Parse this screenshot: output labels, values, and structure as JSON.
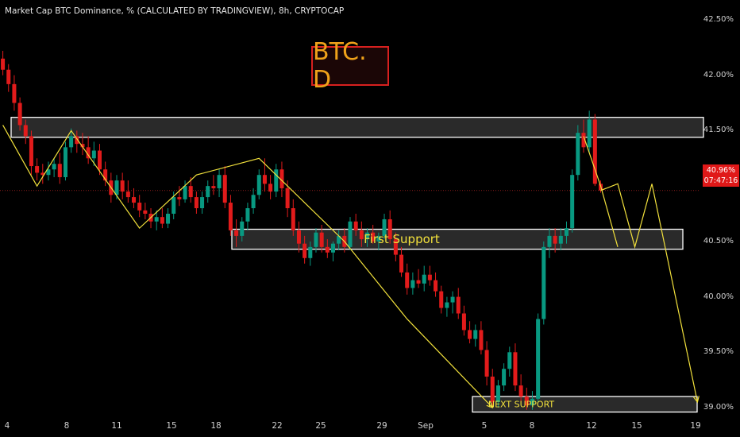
{
  "header": {
    "symbol_line": "Market Cap BTC Dominance, % (CALCULATED BY TRADINGVIEW), 8h, CRYPTOCAP",
    "badge": "BTC. D"
  },
  "price_tag": {
    "value": "40.96%",
    "countdown": "07:47:16"
  },
  "colors": {
    "up": "#089981",
    "down": "#e21b1b",
    "annotation": "#f2e13c",
    "zone_border": "#ffffff",
    "badge_border": "#d8201f",
    "badge_text": "#f0a21a"
  },
  "chart_data": {
    "type": "candlestick",
    "title": "BTC. D",
    "ylim": [
      38.95,
      42.55
    ],
    "y_ticks": [
      "42.50%",
      "42.00%",
      "41.50%",
      "40.50%",
      "40.00%",
      "39.50%",
      "39.00%"
    ],
    "x_ticks": [
      "4",
      "8",
      "11",
      "15",
      "18",
      "22",
      "25",
      "29",
      "Sep",
      "5",
      "8",
      "12",
      "15",
      "19"
    ],
    "last_price": 40.96,
    "zones": [
      {
        "label": "",
        "low": 41.44,
        "high": 41.62
      },
      {
        "label": "First Support",
        "low": 40.43,
        "high": 40.61
      },
      {
        "label": "NEXT SUPPORT",
        "low": 38.96,
        "high": 39.1
      }
    ],
    "candles": [
      [
        42.15,
        42.22,
        42.0,
        42.05
      ],
      [
        42.05,
        42.1,
        41.85,
        41.92
      ],
      [
        41.92,
        42.0,
        41.68,
        41.75
      ],
      [
        41.75,
        41.8,
        41.5,
        41.55
      ],
      [
        41.55,
        41.6,
        41.38,
        41.45
      ],
      [
        41.45,
        41.5,
        41.1,
        41.18
      ],
      [
        41.18,
        41.25,
        41.05,
        41.12
      ],
      [
        41.12,
        41.2,
        41.02,
        41.1
      ],
      [
        41.1,
        41.22,
        41.05,
        41.15
      ],
      [
        41.15,
        41.25,
        41.08,
        41.2
      ],
      [
        41.2,
        41.3,
        41.02,
        41.08
      ],
      [
        41.08,
        41.4,
        41.05,
        41.35
      ],
      [
        41.35,
        41.52,
        41.3,
        41.45
      ],
      [
        41.45,
        41.5,
        41.3,
        41.38
      ],
      [
        41.38,
        41.48,
        41.28,
        41.35
      ],
      [
        41.35,
        41.45,
        41.2,
        41.25
      ],
      [
        41.25,
        41.4,
        41.18,
        41.32
      ],
      [
        41.32,
        41.38,
        41.1,
        41.15
      ],
      [
        41.15,
        41.22,
        41.0,
        41.05
      ],
      [
        41.05,
        41.12,
        40.85,
        40.92
      ],
      [
        40.92,
        41.1,
        40.88,
        41.05
      ],
      [
        41.05,
        41.12,
        40.88,
        40.95
      ],
      [
        40.95,
        41.05,
        40.85,
        40.9
      ],
      [
        40.9,
        40.98,
        40.8,
        40.85
      ],
      [
        40.85,
        40.92,
        40.72,
        40.78
      ],
      [
        40.78,
        40.85,
        40.7,
        40.75
      ],
      [
        40.75,
        40.8,
        40.62,
        40.68
      ],
      [
        40.68,
        40.78,
        40.6,
        40.72
      ],
      [
        40.72,
        40.8,
        40.62,
        40.66
      ],
      [
        40.66,
        40.8,
        40.62,
        40.75
      ],
      [
        40.75,
        40.95,
        40.7,
        40.9
      ],
      [
        40.9,
        41.0,
        40.82,
        40.88
      ],
      [
        40.88,
        41.05,
        40.85,
        41.0
      ],
      [
        41.0,
        41.08,
        40.85,
        40.9
      ],
      [
        40.9,
        40.95,
        40.75,
        40.8
      ],
      [
        40.8,
        40.95,
        40.75,
        40.9
      ],
      [
        40.9,
        41.05,
        40.85,
        41.0
      ],
      [
        41.0,
        41.1,
        40.92,
        40.98
      ],
      [
        40.98,
        41.15,
        40.9,
        41.1
      ],
      [
        41.1,
        41.18,
        40.8,
        40.85
      ],
      [
        40.85,
        40.92,
        40.55,
        40.6
      ],
      [
        40.6,
        40.7,
        40.45,
        40.55
      ],
      [
        40.55,
        40.72,
        40.5,
        40.68
      ],
      [
        40.68,
        40.85,
        40.6,
        40.8
      ],
      [
        40.8,
        40.98,
        40.75,
        40.92
      ],
      [
        40.92,
        41.15,
        40.88,
        41.1
      ],
      [
        41.1,
        41.25,
        40.95,
        41.02
      ],
      [
        41.02,
        41.1,
        40.88,
        40.95
      ],
      [
        40.95,
        41.2,
        40.9,
        41.15
      ],
      [
        41.15,
        41.22,
        40.9,
        40.98
      ],
      [
        40.98,
        41.05,
        40.72,
        40.8
      ],
      [
        40.8,
        40.88,
        40.55,
        40.6
      ],
      [
        40.6,
        40.68,
        40.4,
        40.48
      ],
      [
        40.48,
        40.55,
        40.3,
        40.35
      ],
      [
        40.35,
        40.5,
        40.28,
        40.45
      ],
      [
        40.45,
        40.62,
        40.4,
        40.58
      ],
      [
        40.58,
        40.65,
        40.4,
        40.45
      ],
      [
        40.45,
        40.52,
        40.35,
        40.4
      ],
      [
        40.4,
        40.5,
        40.32,
        40.48
      ],
      [
        40.48,
        40.6,
        40.42,
        40.55
      ],
      [
        40.55,
        40.62,
        40.4,
        40.45
      ],
      [
        40.45,
        40.72,
        40.42,
        40.68
      ],
      [
        40.68,
        40.75,
        40.55,
        40.6
      ],
      [
        40.6,
        40.68,
        40.45,
        40.52
      ],
      [
        40.52,
        40.62,
        40.45,
        40.58
      ],
      [
        40.58,
        40.65,
        40.48,
        40.5
      ],
      [
        40.5,
        40.58,
        40.42,
        40.55
      ],
      [
        40.55,
        40.75,
        40.52,
        40.7
      ],
      [
        40.7,
        40.78,
        40.48,
        40.52
      ],
      [
        40.52,
        40.58,
        40.32,
        40.38
      ],
      [
        40.38,
        40.45,
        40.18,
        40.22
      ],
      [
        40.22,
        40.3,
        40.02,
        40.08
      ],
      [
        40.08,
        40.22,
        40.02,
        40.15
      ],
      [
        40.15,
        40.25,
        40.08,
        40.12
      ],
      [
        40.12,
        40.28,
        40.05,
        40.2
      ],
      [
        40.2,
        40.28,
        40.1,
        40.15
      ],
      [
        40.15,
        40.22,
        40.0,
        40.05
      ],
      [
        40.05,
        40.1,
        39.85,
        39.9
      ],
      [
        39.9,
        40.0,
        39.82,
        39.95
      ],
      [
        39.95,
        40.05,
        39.85,
        40.0
      ],
      [
        40.0,
        40.08,
        39.8,
        39.85
      ],
      [
        39.85,
        39.92,
        39.65,
        39.7
      ],
      [
        39.7,
        39.78,
        39.58,
        39.62
      ],
      [
        39.62,
        39.75,
        39.55,
        39.7
      ],
      [
        39.7,
        39.78,
        39.48,
        39.52
      ],
      [
        39.52,
        39.6,
        39.2,
        39.28
      ],
      [
        39.28,
        39.35,
        39.0,
        39.05
      ],
      [
        39.05,
        39.25,
        39.0,
        39.2
      ],
      [
        39.2,
        39.4,
        39.15,
        39.35
      ],
      [
        39.35,
        39.55,
        39.28,
        39.5
      ],
      [
        39.5,
        39.58,
        39.15,
        39.2
      ],
      [
        39.2,
        39.3,
        39.05,
        39.1
      ],
      [
        39.1,
        39.18,
        38.98,
        39.02
      ],
      [
        39.02,
        39.15,
        38.98,
        39.08
      ],
      [
        39.08,
        39.85,
        39.05,
        39.8
      ],
      [
        39.8,
        40.5,
        39.75,
        40.45
      ],
      [
        40.45,
        40.62,
        40.35,
        40.55
      ],
      [
        40.55,
        40.62,
        40.4,
        40.48
      ],
      [
        40.48,
        40.62,
        40.42,
        40.55
      ],
      [
        40.55,
        40.68,
        40.48,
        40.62
      ],
      [
        40.62,
        41.15,
        40.58,
        41.1
      ],
      [
        41.1,
        41.55,
        41.05,
        41.48
      ],
      [
        41.48,
        41.6,
        41.3,
        41.35
      ],
      [
        41.35,
        41.68,
        41.3,
        41.6
      ],
      [
        41.6,
        41.65,
        41.0,
        41.02
      ],
      [
        41.02,
        41.05,
        40.94,
        40.96
      ]
    ],
    "projection": [
      [
        105,
        40.96
      ],
      [
        108,
        41.02
      ],
      [
        111,
        40.45
      ],
      [
        114,
        41.02
      ],
      [
        122,
        39.05
      ]
    ],
    "patterns": [
      [
        [
          0,
          41.55
        ],
        [
          6,
          41.0
        ],
        [
          12,
          41.5
        ],
        [
          24,
          40.62
        ],
        [
          34,
          41.1
        ],
        [
          45,
          41.25
        ],
        [
          60,
          40.5
        ],
        [
          71,
          39.8
        ],
        [
          86,
          39.0
        ]
      ],
      [
        [
          102,
          41.45
        ],
        [
          105,
          41.0
        ],
        [
          108,
          40.45
        ]
      ]
    ]
  }
}
